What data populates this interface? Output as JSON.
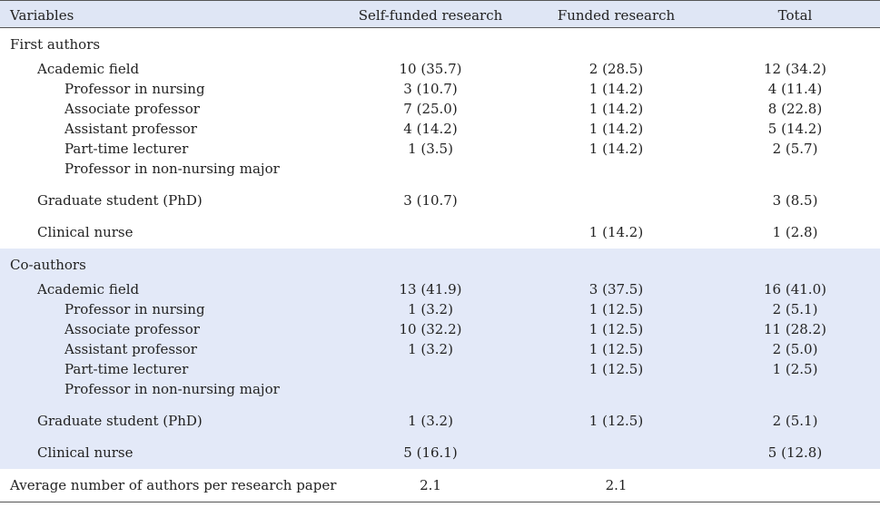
{
  "columns": [
    "Variables",
    "Self-funded research",
    "Funded research",
    "Total"
  ],
  "sections": [
    {
      "title": "First authors",
      "shaded": false,
      "rows": [
        {
          "label": "Academic field",
          "level": 1,
          "self": "10 (35.7)",
          "funded": "2 (28.5)",
          "total": "12 (34.2)",
          "gap_before": true
        },
        {
          "label": "Professor in nursing",
          "level": 2,
          "self": "3 (10.7)",
          "funded": "1 (14.2)",
          "total": "4 (11.4)"
        },
        {
          "label": "Associate professor",
          "level": 2,
          "self": "7 (25.0)",
          "funded": "1 (14.2)",
          "total": "8 (22.8)"
        },
        {
          "label": "Assistant professor",
          "level": 2,
          "self": "4 (14.2)",
          "funded": "1 (14.2)",
          "total": "5 (14.2)"
        },
        {
          "label": "Part-time lecturer",
          "level": 2,
          "self": "1 (3.5)",
          "funded": "1 (14.2)",
          "total": "2 (5.7)"
        },
        {
          "label": "Professor in non-nursing major",
          "level": 2,
          "self": "",
          "funded": "",
          "total": ""
        },
        {
          "label": "Graduate student (PhD)",
          "level": 1,
          "self": "3 (10.7)",
          "funded": "",
          "total": "3 (8.5)",
          "gap_before": true
        },
        {
          "label": "Clinical nurse",
          "level": 1,
          "self": "",
          "funded": "1 (14.2)",
          "total": "1 (2.8)",
          "gap_before": true
        }
      ]
    },
    {
      "title": "Co-authors",
      "shaded": true,
      "rows": [
        {
          "label": "Academic field",
          "level": 1,
          "self": "13 (41.9)",
          "funded": "3 (37.5)",
          "total": "16 (41.0)",
          "gap_before": true
        },
        {
          "label": "Professor in nursing",
          "level": 2,
          "self": "1 (3.2)",
          "funded": "1 (12.5)",
          "total": "2 (5.1)"
        },
        {
          "label": "Associate professor",
          "level": 2,
          "self": "10 (32.2)",
          "funded": "1 (12.5)",
          "total": "11 (28.2)"
        },
        {
          "label": "Assistant professor",
          "level": 2,
          "self": "1 (3.2)",
          "funded": "1 (12.5)",
          "total": "2 (5.0)"
        },
        {
          "label": "Part-time lecturer",
          "level": 2,
          "self": "",
          "funded": "1 (12.5)",
          "total": "1 (2.5)"
        },
        {
          "label": "Professor in non-nursing major",
          "level": 2,
          "self": "",
          "funded": "",
          "total": ""
        },
        {
          "label": "Graduate student (PhD)",
          "level": 1,
          "self": "1 (3.2)",
          "funded": "1 (12.5)",
          "total": "2 (5.1)",
          "gap_before": true
        },
        {
          "label": "Clinical nurse",
          "level": 1,
          "self": "5 (16.1)",
          "funded": "",
          "total": "5 (12.8)",
          "gap_before": true
        }
      ]
    }
  ],
  "footer": {
    "label": "Average number of authors per research paper",
    "self": "2.1",
    "funded": "2.1",
    "total": ""
  }
}
